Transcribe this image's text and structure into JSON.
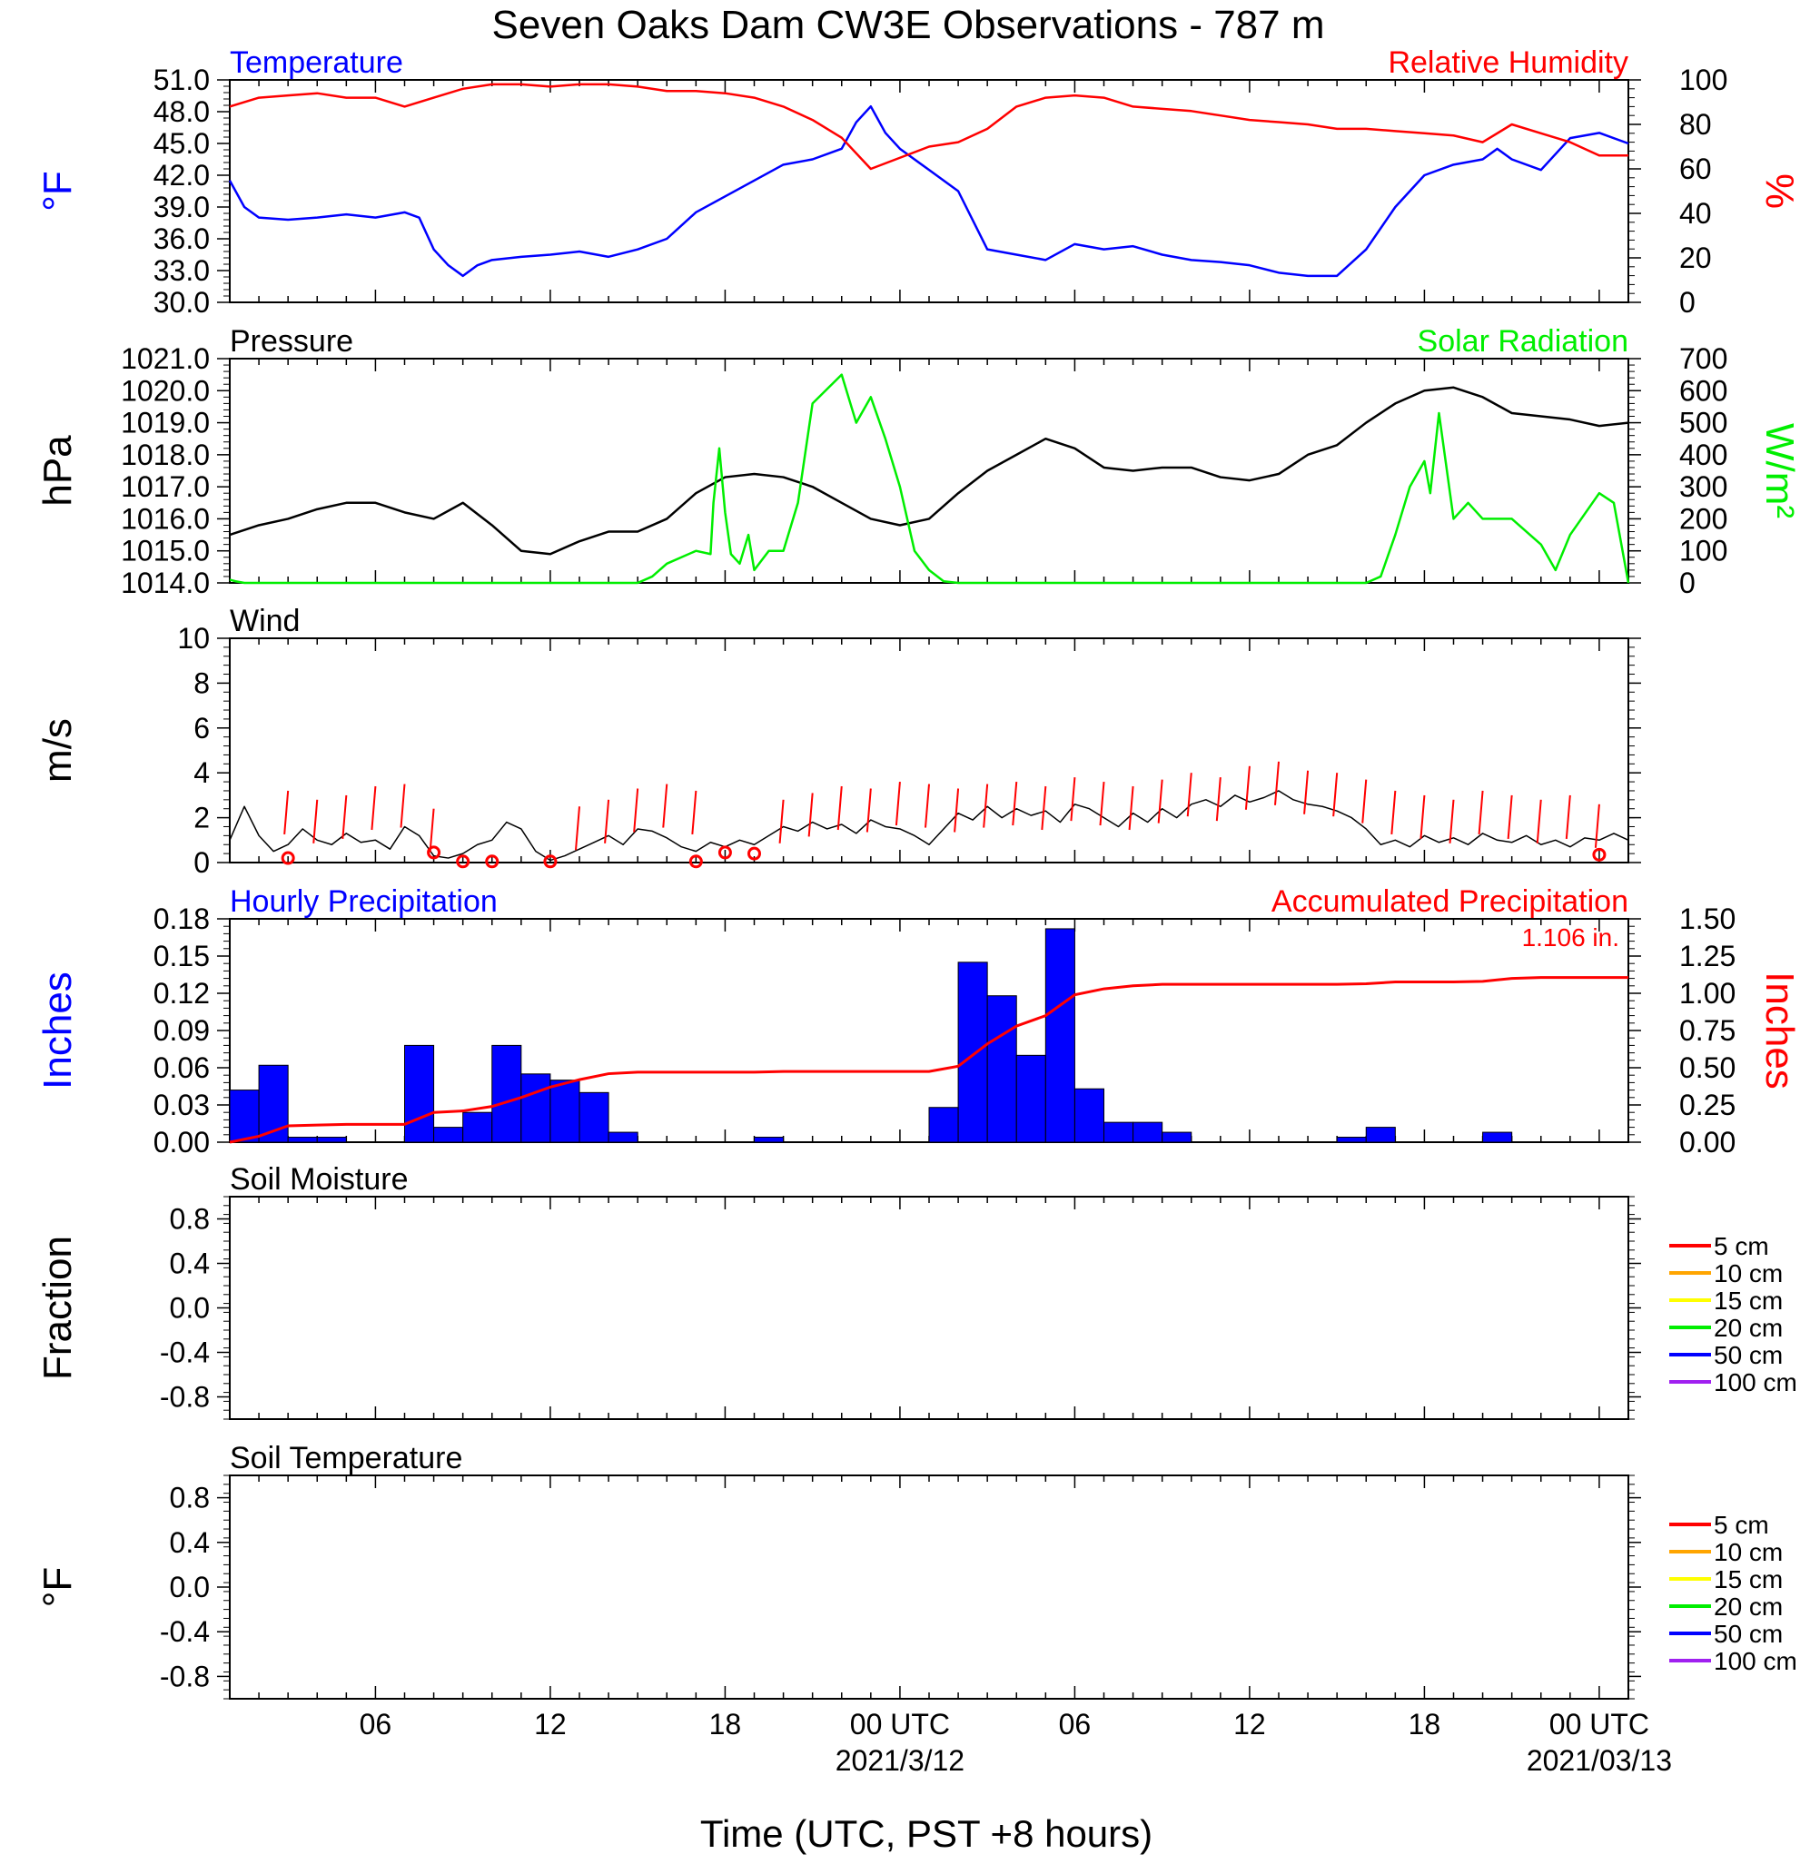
{
  "title": "Seven Oaks Dam CW3E Observations - 787 m",
  "xaxis": {
    "label": "Time (UTC, PST +8 hours)",
    "ticks": [
      {
        "hour": 6,
        "label": "06",
        "sub": ""
      },
      {
        "hour": 12,
        "label": "12",
        "sub": ""
      },
      {
        "hour": 18,
        "label": "18",
        "sub": ""
      },
      {
        "hour": 24,
        "label": "00 UTC",
        "sub": "2021/3/12"
      },
      {
        "hour": 30,
        "label": "06",
        "sub": ""
      },
      {
        "hour": 36,
        "label": "12",
        "sub": ""
      },
      {
        "hour": 42,
        "label": "18",
        "sub": ""
      },
      {
        "hour": 48,
        "label": "00 UTC",
        "sub": "2021/03/13"
      }
    ],
    "range_hours": [
      1,
      49
    ]
  },
  "chart_data": [
    {
      "type": "line",
      "id": "temp_rh",
      "left_title": "Temperature",
      "right_title": "Relative Humidity",
      "ylabel_left": "°F",
      "ylabel_right": "%",
      "left_color": "#0000ff",
      "right_color": "#ff0000",
      "ylim_left": [
        30,
        51
      ],
      "yticks_left": [
        "30.0",
        "33.0",
        "36.0",
        "39.0",
        "42.0",
        "45.0",
        "48.0",
        "51.0"
      ],
      "ylim_right": [
        0,
        100
      ],
      "yticks_right": [
        "0",
        "20",
        "40",
        "60",
        "80",
        "100"
      ],
      "series": [
        {
          "axis": "left",
          "color": "#0000ff",
          "x": [
            1,
            1.5,
            2,
            3,
            4,
            5,
            6,
            7,
            7.5,
            8,
            8.5,
            9,
            9.5,
            10,
            11,
            12,
            13,
            14,
            15,
            16,
            17,
            18,
            19,
            20,
            21,
            22,
            22.5,
            23,
            23.5,
            24,
            25,
            26,
            27,
            28,
            29,
            30,
            31,
            32,
            33,
            34,
            35,
            36,
            37,
            38,
            39,
            40,
            41,
            42,
            43,
            44,
            44.5,
            45,
            46,
            47,
            48,
            49
          ],
          "y": [
            41.5,
            39,
            38,
            37.8,
            38,
            38.3,
            38,
            38.5,
            38,
            35,
            33.5,
            32.5,
            33.5,
            34,
            34.3,
            34.5,
            34.8,
            34.3,
            35,
            36,
            38.5,
            40,
            41.5,
            43,
            43.5,
            44.5,
            47,
            48.5,
            46,
            44.5,
            42.5,
            40.5,
            35,
            34.5,
            34,
            35.5,
            35,
            35.3,
            34.5,
            34,
            33.8,
            33.5,
            32.8,
            32.5,
            32.5,
            35,
            39,
            42,
            43,
            43.5,
            44.5,
            43.5,
            42.5,
            45.5,
            46,
            45
          ]
        },
        {
          "axis": "right",
          "color": "#ff0000",
          "x": [
            1,
            2,
            3,
            4,
            5,
            6,
            7,
            8,
            9,
            10,
            11,
            12,
            13,
            14,
            15,
            16,
            17,
            18,
            19,
            20,
            21,
            22,
            23,
            24,
            25,
            26,
            27,
            28,
            29,
            30,
            31,
            32,
            33,
            34,
            35,
            36,
            37,
            38,
            39,
            40,
            41,
            42,
            43,
            44,
            45,
            46,
            47,
            48,
            49
          ],
          "y": [
            88,
            92,
            93,
            94,
            92,
            92,
            88,
            92,
            96,
            98,
            98,
            97,
            98,
            98,
            97,
            95,
            95,
            94,
            92,
            88,
            82,
            74,
            60,
            65,
            70,
            72,
            78,
            88,
            92,
            93,
            92,
            88,
            87,
            86,
            84,
            82,
            81,
            80,
            78,
            78,
            77,
            76,
            75,
            72,
            80,
            76,
            72,
            66,
            66
          ]
        }
      ]
    },
    {
      "type": "line",
      "id": "pressure_solar",
      "left_title": "Pressure",
      "right_title": "Solar Radiation",
      "ylabel_left": "hPa",
      "ylabel_right": "W/m²",
      "left_color": "#000000",
      "right_color": "#00ee00",
      "ylim_left": [
        1014,
        1021
      ],
      "yticks_left": [
        "1014.0",
        "1015.0",
        "1016.0",
        "1017.0",
        "1018.0",
        "1019.0",
        "1020.0",
        "1021.0"
      ],
      "ylim_right": [
        0,
        700
      ],
      "yticks_right": [
        "0",
        "100",
        "200",
        "300",
        "400",
        "500",
        "600",
        "700"
      ],
      "series": [
        {
          "axis": "left",
          "color": "#000000",
          "x": [
            1,
            2,
            3,
            4,
            5,
            6,
            7,
            8,
            9,
            10,
            11,
            12,
            13,
            14,
            15,
            16,
            17,
            18,
            19,
            20,
            21,
            22,
            23,
            24,
            25,
            26,
            27,
            28,
            29,
            30,
            31,
            32,
            33,
            34,
            35,
            36,
            37,
            38,
            39,
            40,
            41,
            42,
            43,
            44,
            45,
            46,
            47,
            48,
            49
          ],
          "y": [
            1015.5,
            1015.8,
            1016.0,
            1016.3,
            1016.5,
            1016.5,
            1016.2,
            1016.0,
            1016.5,
            1015.8,
            1015.0,
            1014.9,
            1015.3,
            1015.6,
            1015.6,
            1016.0,
            1016.8,
            1017.3,
            1017.4,
            1017.3,
            1017.0,
            1016.5,
            1016.0,
            1015.8,
            1016.0,
            1016.8,
            1017.5,
            1018.0,
            1018.5,
            1018.2,
            1017.6,
            1017.5,
            1017.6,
            1017.6,
            1017.3,
            1017.2,
            1017.4,
            1018.0,
            1018.3,
            1019.0,
            1019.6,
            1020.0,
            1020.1,
            1019.8,
            1019.3,
            1019.2,
            1019.1,
            1018.9,
            1019.0
          ]
        },
        {
          "axis": "right",
          "color": "#00ee00",
          "x": [
            1,
            1.2,
            1.5,
            2,
            5,
            10,
            15,
            15.5,
            16,
            16.5,
            17,
            17.5,
            17.6,
            17.8,
            18,
            18.2,
            18.5,
            18.8,
            19,
            19.5,
            20,
            20.5,
            21,
            22,
            22.5,
            23,
            23.5,
            24,
            24.5,
            25,
            25.5,
            26,
            30,
            40,
            40.5,
            41,
            41.5,
            42,
            42.2,
            42.5,
            43,
            43.5,
            44,
            45,
            46,
            46.5,
            47,
            48,
            48.5,
            49
          ],
          "y": [
            10,
            5,
            0,
            0,
            0,
            0,
            0,
            20,
            60,
            80,
            100,
            90,
            250,
            420,
            220,
            90,
            60,
            150,
            40,
            100,
            100,
            250,
            560,
            650,
            500,
            580,
            450,
            300,
            100,
            40,
            5,
            0,
            0,
            0,
            20,
            150,
            300,
            380,
            280,
            530,
            200,
            250,
            200,
            200,
            120,
            40,
            150,
            280,
            250,
            0
          ]
        }
      ]
    },
    {
      "type": "line",
      "id": "wind",
      "left_title": "Wind",
      "ylabel_left": "m/s",
      "left_color": "#000000",
      "ylim_left": [
        0,
        10
      ],
      "yticks_left": [
        "0",
        "2",
        "4",
        "6",
        "8",
        "10"
      ],
      "series": [
        {
          "axis": "left",
          "color": "#000000",
          "x": [
            1,
            1.5,
            2,
            2.5,
            3,
            3.5,
            4,
            4.5,
            5,
            5.5,
            6,
            6.5,
            7,
            7.5,
            8,
            8.5,
            9,
            9.5,
            10,
            10.5,
            11,
            11.5,
            12,
            12.5,
            13,
            13.5,
            14,
            14.5,
            15,
            15.5,
            16,
            16.5,
            17,
            17.5,
            18,
            18.5,
            19,
            19.5,
            20,
            20.5,
            21,
            21.5,
            22,
            22.5,
            23,
            23.5,
            24,
            24.5,
            25,
            25.5,
            26,
            26.5,
            27,
            27.5,
            28,
            28.5,
            29,
            29.5,
            30,
            30.5,
            31,
            31.5,
            32,
            32.5,
            33,
            33.5,
            34,
            34.5,
            35,
            35.5,
            36,
            36.5,
            37,
            37.5,
            38,
            38.5,
            39,
            39.5,
            40,
            40.5,
            41,
            41.5,
            42,
            42.5,
            43,
            43.5,
            44,
            44.5,
            45,
            45.5,
            46,
            46.5,
            47,
            47.5,
            48,
            48.5,
            49
          ],
          "y": [
            1.0,
            2.5,
            1.2,
            0.5,
            0.8,
            1.5,
            1.0,
            0.8,
            1.3,
            0.9,
            1.0,
            0.6,
            1.6,
            1.2,
            0.3,
            0.2,
            0.4,
            0.8,
            1.0,
            1.8,
            1.5,
            0.5,
            0.1,
            0.3,
            0.6,
            0.9,
            1.2,
            0.8,
            1.5,
            1.4,
            1.1,
            0.7,
            0.5,
            0.9,
            0.7,
            1.0,
            0.8,
            1.2,
            1.6,
            1.4,
            1.8,
            1.5,
            1.7,
            1.3,
            1.9,
            1.6,
            1.5,
            1.2,
            0.8,
            1.5,
            2.2,
            1.9,
            2.5,
            2.0,
            2.4,
            2.1,
            2.3,
            1.8,
            2.6,
            2.4,
            2.0,
            1.6,
            2.2,
            1.8,
            2.4,
            2.0,
            2.6,
            2.8,
            2.5,
            3.0,
            2.7,
            2.9,
            3.2,
            2.8,
            2.6,
            2.5,
            2.3,
            2.0,
            1.5,
            0.8,
            1.0,
            0.7,
            1.2,
            0.9,
            1.1,
            0.8,
            1.3,
            1.0,
            0.9,
            1.2,
            0.8,
            1.0,
            0.7,
            1.1,
            1.0,
            1.3,
            1.0
          ]
        }
      ],
      "barb_x": [
        3,
        4,
        5,
        6,
        7,
        8,
        13,
        14,
        15,
        16,
        17,
        20,
        21,
        22,
        23,
        24,
        25,
        26,
        27,
        28,
        29,
        30,
        31,
        32,
        33,
        34,
        35,
        36,
        37,
        38,
        39,
        40,
        41,
        42,
        43,
        44,
        45,
        46,
        47,
        48
      ],
      "barb_y": [
        3.2,
        2.8,
        3.0,
        3.4,
        3.5,
        2.4,
        2.5,
        2.8,
        3.3,
        3.5,
        3.2,
        2.8,
        3.1,
        3.4,
        3.3,
        3.6,
        3.5,
        3.3,
        3.5,
        3.6,
        3.4,
        3.8,
        3.6,
        3.4,
        3.7,
        4.0,
        3.8,
        4.3,
        4.5,
        4.1,
        4.0,
        3.7,
        3.2,
        3.0,
        2.8,
        3.2,
        3.0,
        2.8,
        3.0,
        2.6
      ],
      "calm_x": [
        3,
        8,
        9,
        10,
        12,
        17,
        18,
        19,
        48
      ],
      "calm_y": [
        0.2,
        0.45,
        0.05,
        0.05,
        0.05,
        0.05,
        0.45,
        0.4,
        0.35
      ]
    },
    {
      "type": "bar",
      "id": "precip",
      "left_title": "Hourly Precipitation",
      "right_title": "Accumulated Precipitation",
      "ylabel_left": "Inches",
      "ylabel_right": "Inches",
      "left_color": "#0000ff",
      "right_color": "#ff0000",
      "ylim_left": [
        0,
        0.18
      ],
      "yticks_left": [
        "0.00",
        "0.03",
        "0.06",
        "0.09",
        "0.12",
        "0.15",
        "0.18"
      ],
      "ylim_right": [
        0,
        1.5
      ],
      "yticks_right": [
        "0.00",
        "0.25",
        "0.50",
        "0.75",
        "1.00",
        "1.25",
        "1.50"
      ],
      "total_label": "1.106 in.",
      "hours": [
        1,
        2,
        3,
        4,
        5,
        6,
        7,
        8,
        9,
        10,
        11,
        12,
        13,
        14,
        15,
        16,
        17,
        18,
        19,
        20,
        21,
        22,
        23,
        24,
        25,
        26,
        27,
        28,
        29,
        30,
        31,
        32,
        33,
        34,
        35,
        36,
        37,
        38,
        39,
        40,
        41,
        42,
        43,
        44,
        45,
        46,
        47,
        48
      ],
      "values": [
        0.042,
        0.062,
        0.004,
        0.004,
        0,
        0,
        0.078,
        0.012,
        0.024,
        0.078,
        0.055,
        0.05,
        0.04,
        0.008,
        0,
        0,
        0,
        0,
        0.004,
        0,
        0,
        0,
        0,
        0,
        0.028,
        0.145,
        0.118,
        0.07,
        0.172,
        0.043,
        0.016,
        0.016,
        0.008,
        0,
        0,
        0,
        0,
        0,
        0.004,
        0.012,
        0,
        0,
        0,
        0.008,
        0,
        0,
        0,
        0
      ],
      "accum_x": [
        1,
        2,
        3,
        4,
        5,
        6,
        7,
        8,
        9,
        10,
        11,
        12,
        13,
        14,
        15,
        16,
        17,
        18,
        19,
        20,
        21,
        22,
        23,
        24,
        25,
        26,
        27,
        28,
        29,
        30,
        31,
        32,
        33,
        34,
        35,
        36,
        37,
        38,
        39,
        40,
        41,
        42,
        43,
        44,
        45,
        46,
        47,
        48,
        49
      ],
      "accum_y": [
        0,
        0.04,
        0.11,
        0.115,
        0.12,
        0.12,
        0.12,
        0.2,
        0.21,
        0.24,
        0.3,
        0.37,
        0.42,
        0.46,
        0.47,
        0.47,
        0.47,
        0.47,
        0.47,
        0.475,
        0.475,
        0.475,
        0.475,
        0.475,
        0.475,
        0.51,
        0.66,
        0.78,
        0.85,
        0.99,
        1.03,
        1.05,
        1.06,
        1.06,
        1.06,
        1.06,
        1.06,
        1.06,
        1.06,
        1.064,
        1.076,
        1.076,
        1.076,
        1.08,
        1.1,
        1.106,
        1.106,
        1.106,
        1.106
      ]
    },
    {
      "type": "line",
      "id": "soil_moisture",
      "left_title": "Soil Moisture",
      "ylabel_left": "Fraction",
      "ylim_left": [
        -1,
        1
      ],
      "yticks_left": [
        "-0.8",
        "-0.4",
        "0.0",
        "0.4",
        "0.8"
      ],
      "series": []
    },
    {
      "type": "line",
      "id": "soil_temperature",
      "left_title": "Soil Temperature",
      "ylabel_left": "°F",
      "ylim_left": [
        -1,
        1
      ],
      "yticks_left": [
        "-0.8",
        "-0.4",
        "0.0",
        "0.4",
        "0.8"
      ],
      "series": []
    }
  ],
  "legend": [
    {
      "label": "5 cm",
      "color": "#ff0000"
    },
    {
      "label": "10 cm",
      "color": "#ffa500"
    },
    {
      "label": "15 cm",
      "color": "#ffff00"
    },
    {
      "label": "20 cm",
      "color": "#00ee00"
    },
    {
      "label": "50 cm",
      "color": "#0000ff"
    },
    {
      "label": "100 cm",
      "color": "#a020f0"
    }
  ]
}
